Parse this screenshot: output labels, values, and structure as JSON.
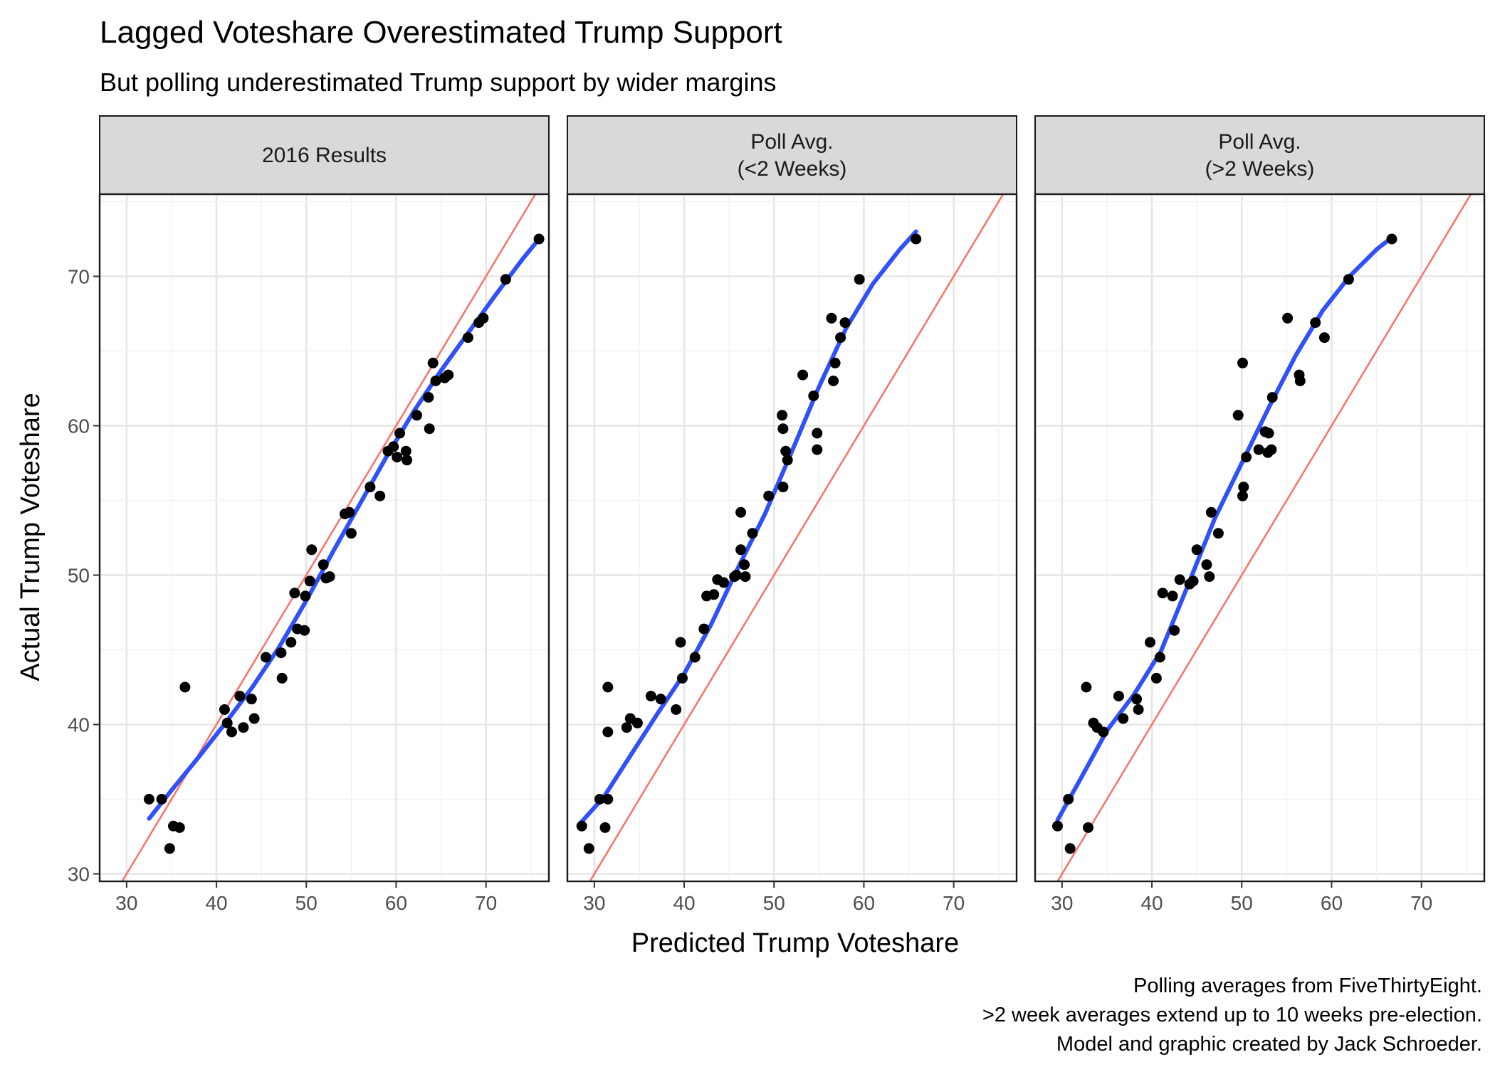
{
  "chart_data": {
    "type": "scatter",
    "title": "Lagged Voteshare Overestimated Trump Support",
    "subtitle": "But polling underestimated Trump support by wider margins",
    "xlabel": "Predicted Trump Voteshare",
    "ylabel": "Actual Trump Voteshare",
    "xlim": [
      27,
      77
    ],
    "ylim": [
      29.5,
      75.5
    ],
    "xticks": [
      30,
      40,
      50,
      60,
      70
    ],
    "yticks": [
      30,
      40,
      50,
      60,
      70
    ],
    "grid": true,
    "caption": [
      "Polling averages from FiveThirtyEight.",
      ">2 week averages extend up to 10 weeks pre-election.",
      "Model and graphic created by Jack Schroeder."
    ],
    "colors": {
      "points": "#000000",
      "smooth": "#3050f8",
      "reference": "#f8766d"
    },
    "reference_line": "y = x",
    "panels": [
      {
        "strip": [
          "2016 Results"
        ],
        "points": [
          [
            32.5,
            35.0
          ],
          [
            33.9,
            35.0
          ],
          [
            35.2,
            33.2
          ],
          [
            34.8,
            31.7
          ],
          [
            35.9,
            33.1
          ],
          [
            36.5,
            42.5
          ],
          [
            40.9,
            41.0
          ],
          [
            41.2,
            40.1
          ],
          [
            41.7,
            39.5
          ],
          [
            42.6,
            41.9
          ],
          [
            43.0,
            39.8
          ],
          [
            43.9,
            41.7
          ],
          [
            44.2,
            40.4
          ],
          [
            45.5,
            44.5
          ],
          [
            47.2,
            44.8
          ],
          [
            47.3,
            43.1
          ],
          [
            48.3,
            45.5
          ],
          [
            48.7,
            48.8
          ],
          [
            49.0,
            46.4
          ],
          [
            49.8,
            46.3
          ],
          [
            49.9,
            48.6
          ],
          [
            50.4,
            49.6
          ],
          [
            50.6,
            51.7
          ],
          [
            51.9,
            50.7
          ],
          [
            52.2,
            49.8
          ],
          [
            52.6,
            49.9
          ],
          [
            54.3,
            54.1
          ],
          [
            54.8,
            54.2
          ],
          [
            55.0,
            52.8
          ],
          [
            57.1,
            55.9
          ],
          [
            58.2,
            55.3
          ],
          [
            59.1,
            58.3
          ],
          [
            59.7,
            58.6
          ],
          [
            60.1,
            57.9
          ],
          [
            60.4,
            59.5
          ],
          [
            61.1,
            58.3
          ],
          [
            61.2,
            57.7
          ],
          [
            62.3,
            60.7
          ],
          [
            63.6,
            61.9
          ],
          [
            63.7,
            59.8
          ],
          [
            64.1,
            64.2
          ],
          [
            64.4,
            63.0
          ],
          [
            65.4,
            63.2
          ],
          [
            65.8,
            63.4
          ],
          [
            68.0,
            65.9
          ],
          [
            69.2,
            66.9
          ],
          [
            69.7,
            67.2
          ],
          [
            72.2,
            69.8
          ],
          [
            75.9,
            72.5
          ]
        ],
        "smooth": [
          [
            32.5,
            33.7
          ],
          [
            35,
            35.6
          ],
          [
            38,
            37.8
          ],
          [
            41,
            40.1
          ],
          [
            44,
            42.5
          ],
          [
            47,
            45.2
          ],
          [
            50,
            48.3
          ],
          [
            53,
            51.6
          ],
          [
            56,
            54.8
          ],
          [
            59,
            58.0
          ],
          [
            62,
            61.0
          ],
          [
            65,
            63.7
          ],
          [
            68,
            66.2
          ],
          [
            71,
            68.7
          ],
          [
            74,
            71.1
          ],
          [
            75.9,
            72.5
          ]
        ]
      },
      {
        "strip": [
          "Poll Avg.",
          "(<2 Weeks)"
        ],
        "points": [
          [
            28.6,
            33.2
          ],
          [
            29.4,
            31.7
          ],
          [
            30.6,
            35.0
          ],
          [
            31.2,
            33.1
          ],
          [
            31.5,
            35.0
          ],
          [
            31.5,
            42.5
          ],
          [
            31.5,
            39.5
          ],
          [
            33.6,
            39.8
          ],
          [
            34.0,
            40.4
          ],
          [
            34.8,
            40.1
          ],
          [
            36.3,
            41.9
          ],
          [
            37.4,
            41.7
          ],
          [
            39.1,
            41.0
          ],
          [
            39.6,
            45.5
          ],
          [
            39.8,
            43.1
          ],
          [
            41.2,
            44.5
          ],
          [
            42.2,
            46.4
          ],
          [
            42.5,
            48.6
          ],
          [
            43.3,
            48.7
          ],
          [
            43.7,
            49.7
          ],
          [
            44.4,
            49.5
          ],
          [
            45.6,
            49.9
          ],
          [
            45.8,
            50.0
          ],
          [
            46.3,
            51.7
          ],
          [
            46.3,
            54.2
          ],
          [
            46.7,
            50.7
          ],
          [
            46.8,
            49.9
          ],
          [
            47.6,
            52.8
          ],
          [
            49.4,
            55.3
          ],
          [
            50.9,
            60.7
          ],
          [
            51.0,
            59.8
          ],
          [
            51.0,
            55.9
          ],
          [
            51.3,
            58.3
          ],
          [
            51.5,
            57.7
          ],
          [
            53.2,
            63.4
          ],
          [
            54.4,
            62.0
          ],
          [
            54.8,
            59.5
          ],
          [
            54.8,
            58.4
          ],
          [
            56.4,
            67.2
          ],
          [
            56.6,
            63.0
          ],
          [
            56.8,
            64.2
          ],
          [
            57.4,
            65.9
          ],
          [
            57.9,
            66.9
          ],
          [
            59.5,
            69.8
          ],
          [
            65.8,
            72.5
          ]
        ],
        "smooth": [
          [
            28.6,
            33.5
          ],
          [
            31,
            35.1
          ],
          [
            34,
            37.9
          ],
          [
            37,
            40.7
          ],
          [
            40,
            43.4
          ],
          [
            43,
            46.7
          ],
          [
            46,
            50.5
          ],
          [
            49,
            54.1
          ],
          [
            52,
            58.3
          ],
          [
            55,
            62.6
          ],
          [
            58,
            66.5
          ],
          [
            61,
            69.5
          ],
          [
            64,
            71.8
          ],
          [
            65.8,
            73.0
          ]
        ]
      },
      {
        "strip": [
          "Poll Avg.",
          "(>2 Weeks)"
        ],
        "points": [
          [
            29.5,
            33.2
          ],
          [
            30.7,
            35.0
          ],
          [
            30.9,
            31.7
          ],
          [
            32.7,
            42.5
          ],
          [
            32.9,
            33.1
          ],
          [
            33.5,
            40.1
          ],
          [
            33.9,
            39.8
          ],
          [
            34.6,
            39.5
          ],
          [
            36.3,
            41.9
          ],
          [
            36.8,
            40.4
          ],
          [
            38.3,
            41.7
          ],
          [
            38.5,
            41.0
          ],
          [
            39.8,
            45.5
          ],
          [
            40.5,
            43.1
          ],
          [
            40.9,
            44.5
          ],
          [
            41.2,
            48.8
          ],
          [
            42.3,
            48.6
          ],
          [
            42.5,
            46.3
          ],
          [
            43.1,
            49.7
          ],
          [
            44.2,
            49.4
          ],
          [
            44.6,
            49.6
          ],
          [
            45.0,
            51.7
          ],
          [
            46.1,
            50.7
          ],
          [
            46.4,
            49.9
          ],
          [
            46.6,
            54.2
          ],
          [
            47.4,
            52.8
          ],
          [
            49.6,
            60.7
          ],
          [
            50.1,
            64.2
          ],
          [
            50.1,
            55.3
          ],
          [
            50.2,
            55.9
          ],
          [
            50.5,
            57.9
          ],
          [
            51.9,
            58.4
          ],
          [
            52.6,
            59.6
          ],
          [
            52.9,
            58.2
          ],
          [
            53.0,
            59.5
          ],
          [
            53.3,
            58.4
          ],
          [
            53.4,
            61.9
          ],
          [
            55.1,
            67.2
          ],
          [
            56.4,
            63.4
          ],
          [
            56.5,
            63.0
          ],
          [
            58.2,
            66.9
          ],
          [
            59.2,
            65.9
          ],
          [
            61.9,
            69.8
          ],
          [
            66.7,
            72.5
          ]
        ],
        "smooth": [
          [
            29.5,
            33.6
          ],
          [
            32,
            36.3
          ],
          [
            35,
            39.6
          ],
          [
            38,
            42.0
          ],
          [
            41,
            44.9
          ],
          [
            44,
            49.3
          ],
          [
            47,
            53.8
          ],
          [
            50,
            57.5
          ],
          [
            53,
            61.2
          ],
          [
            56,
            64.7
          ],
          [
            59,
            67.7
          ],
          [
            62,
            70.0
          ],
          [
            65,
            71.8
          ],
          [
            66.7,
            72.6
          ]
        ]
      }
    ]
  }
}
